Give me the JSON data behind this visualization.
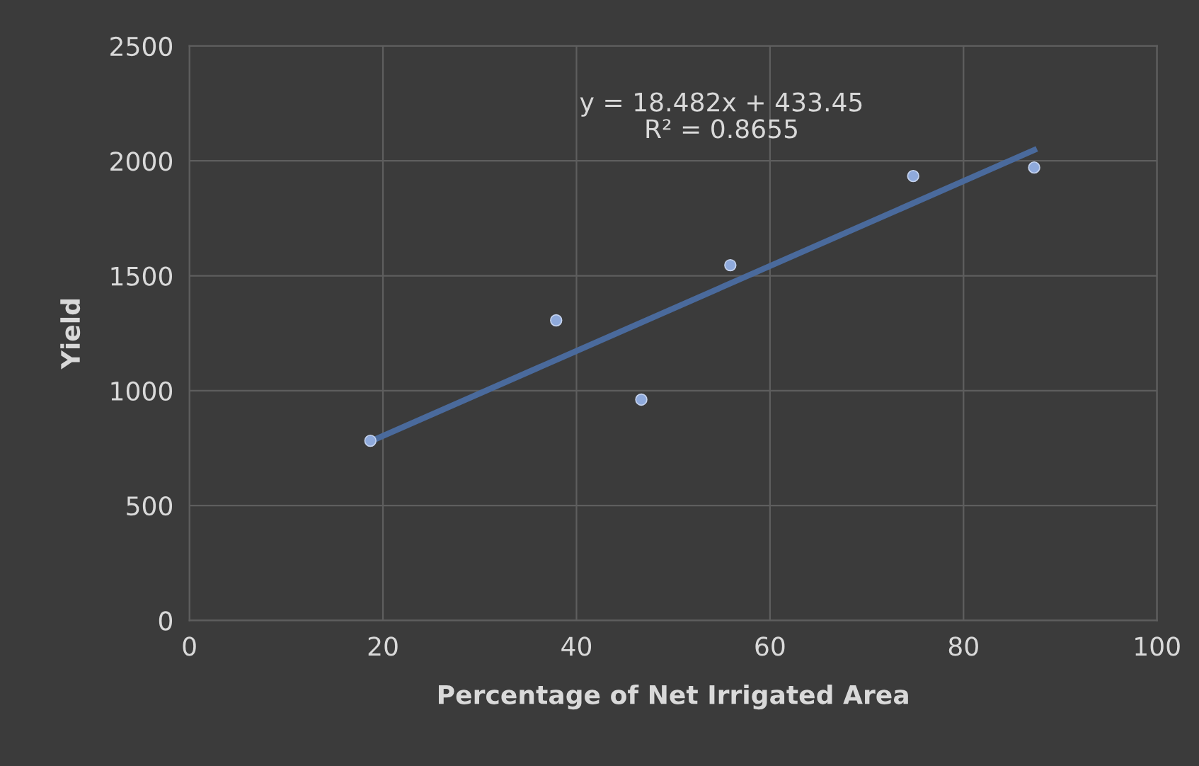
{
  "chart_data": {
    "type": "scatter",
    "xlabel": "Percentage of Net Irrigated Area",
    "ylabel": "Yield",
    "xlim": [
      0,
      100
    ],
    "xticks": [
      0,
      20,
      40,
      60,
      80,
      100
    ],
    "ylim": [
      0,
      2500
    ],
    "yticks": [
      0,
      500,
      1000,
      1500,
      2000,
      2500
    ],
    "grid": true,
    "series": [
      {
        "marker": "circle",
        "color": "#8faadc",
        "x": [
          18.7,
          37.9,
          46.7,
          55.9,
          74.8,
          87.3
        ],
        "values": [
          782,
          1306,
          961,
          1546,
          1934,
          1971
        ]
      },
      {
        "type": "line",
        "marker": "none",
        "color": "#4a6a9c",
        "x": [
          18.7,
          87.3
        ],
        "values": [
          779,
          2047
        ]
      }
    ],
    "annotations": [
      "y = 18.482x + 433.45\nR² = 0.8655"
    ]
  }
}
